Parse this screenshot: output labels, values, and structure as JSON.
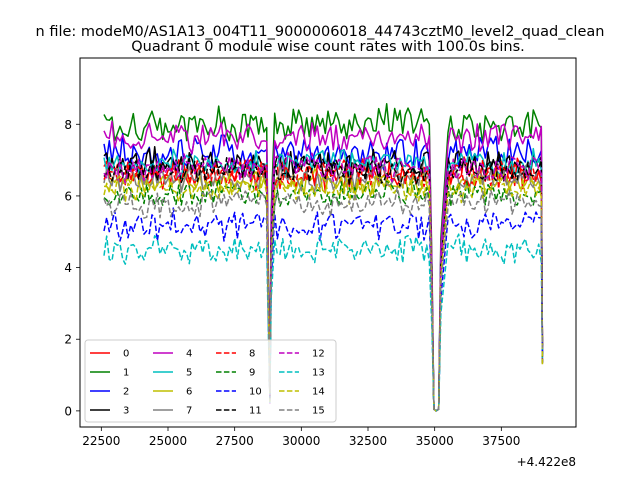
{
  "figure": {
    "suptitle": "n file: modeM0/AS1A13_004T11_9000006018_44743cztM0_level2_quad_clean",
    "title": "Quadrant 0 module wise count rates with 100.0s bins.",
    "x_offset_label": "+4.422e8"
  },
  "chart_data": {
    "type": "line",
    "title": "Quadrant 0 module wise count rates with 100.0s bins.",
    "xlabel": "",
    "ylabel": "",
    "xlim": [
      21700,
      40300
    ],
    "ylim": [
      -0.45,
      9.85
    ],
    "x_offset": 442200000,
    "x_ticks": [
      22500,
      25000,
      27500,
      30000,
      32500,
      35000,
      37500
    ],
    "x_tick_labels": [
      "22500",
      "25000",
      "27500",
      "30000",
      "32500",
      "35000",
      "37500"
    ],
    "y_ticks": [
      0,
      2,
      4,
      6,
      8
    ],
    "y_tick_labels": [
      "0",
      "2",
      "4",
      "6",
      "8"
    ],
    "grid": false,
    "legend": {
      "placement": "lower-left",
      "columns": 4
    },
    "x_segments": [
      [
        22600,
        28700
      ],
      [
        29000,
        34800
      ],
      [
        35500,
        39000
      ]
    ],
    "dips": [
      {
        "center": 28840,
        "min": 0.2
      },
      {
        "center": 35050,
        "min": 0.0
      }
    ],
    "series": [
      {
        "name": "0",
        "color": "#ff0000",
        "dash": "solid",
        "level": 6.6,
        "noise": 0.35
      },
      {
        "name": "1",
        "color": "#008000",
        "dash": "solid",
        "level": 8.0,
        "noise": 0.45
      },
      {
        "name": "2",
        "color": "#0000ff",
        "dash": "solid",
        "level": 7.2,
        "noise": 0.4
      },
      {
        "name": "3",
        "color": "#000000",
        "dash": "solid",
        "level": 6.9,
        "noise": 0.35
      },
      {
        "name": "4",
        "color": "#bf00bf",
        "dash": "solid",
        "level": 7.6,
        "noise": 0.35
      },
      {
        "name": "5",
        "color": "#00bfbf",
        "dash": "solid",
        "level": 6.9,
        "noise": 0.3
      },
      {
        "name": "6",
        "color": "#bfbf00",
        "dash": "solid",
        "level": 6.4,
        "noise": 0.3
      },
      {
        "name": "7",
        "color": "#808080",
        "dash": "solid",
        "level": 6.5,
        "noise": 0.3
      },
      {
        "name": "8",
        "color": "#ff0000",
        "dash": "dashed",
        "level": 6.6,
        "noise": 0.3
      },
      {
        "name": "9",
        "color": "#008000",
        "dash": "dashed",
        "level": 6.1,
        "noise": 0.3
      },
      {
        "name": "10",
        "color": "#0000ff",
        "dash": "dashed",
        "level": 5.2,
        "noise": 0.35
      },
      {
        "name": "11",
        "color": "#000000",
        "dash": "dashed",
        "level": 6.7,
        "noise": 0.3
      },
      {
        "name": "12",
        "color": "#bf00bf",
        "dash": "dashed",
        "level": 6.8,
        "noise": 0.3
      },
      {
        "name": "13",
        "color": "#00bfbf",
        "dash": "dashed",
        "level": 4.5,
        "noise": 0.3
      },
      {
        "name": "14",
        "color": "#bfbf00",
        "dash": "dashed",
        "level": 6.2,
        "noise": 0.3
      },
      {
        "name": "15",
        "color": "#808080",
        "dash": "dashed",
        "level": 5.8,
        "noise": 0.3
      }
    ]
  }
}
